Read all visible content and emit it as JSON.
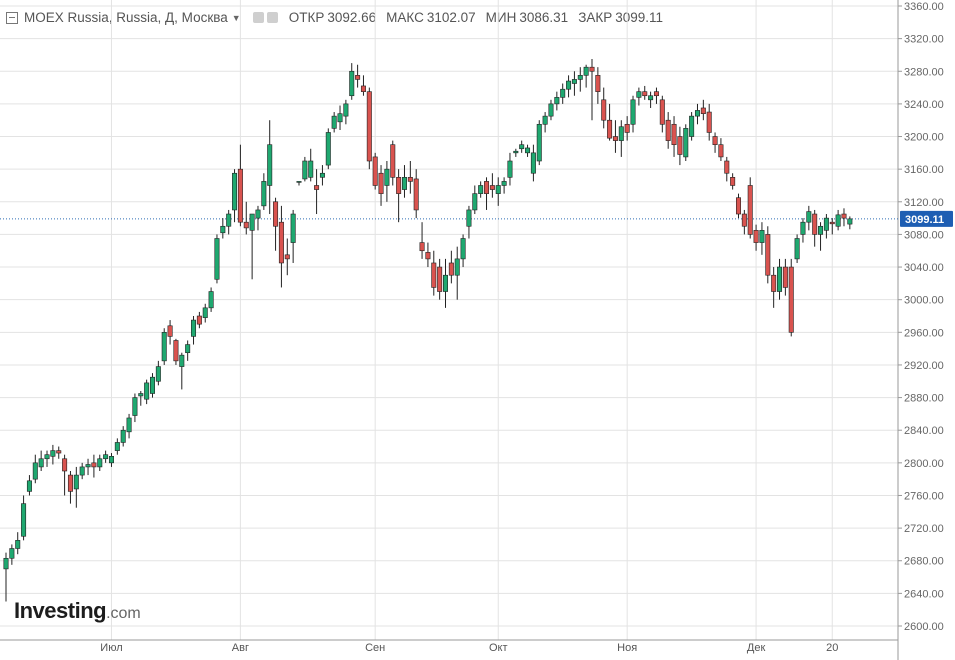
{
  "header": {
    "symbol": "MOEX Russia, Russia, Д, Москва",
    "open_label": "ОТКР",
    "open": "3092.66",
    "high_label": "МАКС",
    "high": "3102.07",
    "low_label": "МИН",
    "low": "3086.31",
    "close_label": "ЗАКР",
    "close": "3099.11"
  },
  "logo": {
    "brand": "Investing",
    "suffix": ".com"
  },
  "colors": {
    "up": "#1fa870",
    "down": "#d9534f",
    "price_badge": "#1e5eb3",
    "grid": "#e3e3e3"
  },
  "chart_data": {
    "type": "candlestick",
    "ylim": [
      2580,
      3360
    ],
    "yticks": [
      2600,
      2640,
      2680,
      2720,
      2760,
      2800,
      2840,
      2880,
      2920,
      2960,
      3000,
      3040,
      3080,
      3120,
      3160,
      3200,
      3240,
      3280,
      3320,
      3360
    ],
    "ytick_labels": [
      "2600.00",
      "2640.00",
      "2680.00",
      "2720.00",
      "2760.00",
      "2800.00",
      "2840.00",
      "2880.00",
      "2920.00",
      "2960.00",
      "3000.00",
      "3040.00",
      "3080.00",
      "3120.00",
      "3160.00",
      "3200.00",
      "3240.00",
      "3280.00",
      "3320.00",
      "3360.00"
    ],
    "x_ticks": [
      {
        "label": "Июл",
        "index": 18
      },
      {
        "label": "Авг",
        "index": 40
      },
      {
        "label": "Сен",
        "index": 63
      },
      {
        "label": "Окт",
        "index": 84
      },
      {
        "label": "Ноя",
        "index": 106
      },
      {
        "label": "Дек",
        "index": 128
      },
      {
        "label": "20",
        "index": 141
      }
    ],
    "last_price": 3099.11,
    "candles": [
      [
        2670,
        2690,
        2630,
        2683
      ],
      [
        2683,
        2700,
        2675,
        2695
      ],
      [
        2695,
        2715,
        2688,
        2705
      ],
      [
        2710,
        2760,
        2705,
        2750
      ],
      [
        2765,
        2785,
        2760,
        2778
      ],
      [
        2780,
        2810,
        2775,
        2800
      ],
      [
        2795,
        2815,
        2790,
        2805
      ],
      [
        2805,
        2815,
        2795,
        2810
      ],
      [
        2808,
        2822,
        2798,
        2815
      ],
      [
        2815,
        2820,
        2805,
        2812
      ],
      [
        2805,
        2810,
        2760,
        2790
      ],
      [
        2785,
        2790,
        2750,
        2765
      ],
      [
        2768,
        2795,
        2745,
        2785
      ],
      [
        2785,
        2800,
        2780,
        2795
      ],
      [
        2795,
        2805,
        2785,
        2798
      ],
      [
        2800,
        2810,
        2782,
        2795
      ],
      [
        2795,
        2810,
        2790,
        2805
      ],
      [
        2805,
        2815,
        2800,
        2810
      ],
      [
        2800,
        2812,
        2795,
        2808
      ],
      [
        2815,
        2830,
        2810,
        2825
      ],
      [
        2825,
        2845,
        2820,
        2840
      ],
      [
        2838,
        2860,
        2830,
        2855
      ],
      [
        2858,
        2885,
        2850,
        2880
      ],
      [
        2882,
        2888,
        2870,
        2885
      ],
      [
        2878,
        2902,
        2872,
        2898
      ],
      [
        2885,
        2910,
        2880,
        2905
      ],
      [
        2900,
        2925,
        2895,
        2918
      ],
      [
        2925,
        2965,
        2920,
        2960
      ],
      [
        2968,
        2975,
        2945,
        2955
      ],
      [
        2950,
        2952,
        2920,
        2925
      ],
      [
        2918,
        2935,
        2890,
        2932
      ],
      [
        2935,
        2950,
        2925,
        2945
      ],
      [
        2955,
        2980,
        2945,
        2975
      ],
      [
        2980,
        2985,
        2965,
        2970
      ],
      [
        2978,
        2995,
        2972,
        2990
      ],
      [
        2990,
        3015,
        2985,
        3010
      ],
      [
        3025,
        3080,
        3020,
        3075
      ],
      [
        3082,
        3100,
        3075,
        3090
      ],
      [
        3090,
        3110,
        3080,
        3105
      ],
      [
        3110,
        3160,
        3095,
        3155
      ],
      [
        3160,
        3190,
        3090,
        3095
      ],
      [
        3095,
        3120,
        3080,
        3088
      ],
      [
        3085,
        3105,
        3025,
        3105
      ],
      [
        3100,
        3115,
        3085,
        3110
      ],
      [
        3115,
        3155,
        3110,
        3145
      ],
      [
        3140,
        3220,
        3105,
        3190
      ],
      [
        3120,
        3125,
        3060,
        3090
      ],
      [
        3095,
        3115,
        3015,
        3045
      ],
      [
        3055,
        3075,
        3030,
        3050
      ],
      [
        3070,
        3110,
        3045,
        3105
      ],
      [
        3145,
        3145,
        3140,
        3145
      ],
      [
        3148,
        3175,
        3145,
        3170
      ],
      [
        3150,
        3185,
        3145,
        3170
      ],
      [
        3140,
        3160,
        3105,
        3135
      ],
      [
        3150,
        3165,
        3140,
        3155
      ],
      [
        3165,
        3210,
        3160,
        3205
      ],
      [
        3210,
        3230,
        3205,
        3225
      ],
      [
        3218,
        3238,
        3208,
        3228
      ],
      [
        3225,
        3245,
        3215,
        3240
      ],
      [
        3250,
        3290,
        3245,
        3280
      ],
      [
        3275,
        3288,
        3260,
        3270
      ],
      [
        3262,
        3275,
        3250,
        3255
      ],
      [
        3255,
        3260,
        3160,
        3170
      ],
      [
        3175,
        3180,
        3135,
        3140
      ],
      [
        3155,
        3165,
        3115,
        3130
      ],
      [
        3140,
        3170,
        3120,
        3160
      ],
      [
        3190,
        3195,
        3140,
        3150
      ],
      [
        3150,
        3160,
        3095,
        3130
      ],
      [
        3135,
        3165,
        3125,
        3150
      ],
      [
        3150,
        3170,
        3130,
        3145
      ],
      [
        3148,
        3160,
        3100,
        3110
      ],
      [
        3070,
        3095,
        3050,
        3060
      ],
      [
        3058,
        3070,
        3040,
        3050
      ],
      [
        3045,
        3060,
        3005,
        3015
      ],
      [
        3040,
        3050,
        3000,
        3010
      ],
      [
        3010,
        3050,
        2990,
        3030
      ],
      [
        3045,
        3060,
        3020,
        3030
      ],
      [
        3030,
        3065,
        3000,
        3050
      ],
      [
        3050,
        3080,
        3040,
        3075
      ],
      [
        3090,
        3115,
        3075,
        3110
      ],
      [
        3110,
        3140,
        3105,
        3130
      ],
      [
        3130,
        3145,
        3125,
        3140
      ],
      [
        3145,
        3150,
        3110,
        3130
      ],
      [
        3140,
        3155,
        3125,
        3135
      ],
      [
        3130,
        3150,
        3115,
        3140
      ],
      [
        3140,
        3150,
        3130,
        3145
      ],
      [
        3150,
        3180,
        3140,
        3170
      ],
      [
        3180,
        3185,
        3175,
        3182
      ],
      [
        3185,
        3195,
        3180,
        3190
      ],
      [
        3180,
        3190,
        3175,
        3186
      ],
      [
        3155,
        3190,
        3145,
        3180
      ],
      [
        3170,
        3220,
        3165,
        3215
      ],
      [
        3215,
        3230,
        3205,
        3225
      ],
      [
        3225,
        3245,
        3220,
        3240
      ],
      [
        3240,
        3255,
        3232,
        3248
      ],
      [
        3248,
        3265,
        3240,
        3258
      ],
      [
        3258,
        3275,
        3248,
        3268
      ],
      [
        3265,
        3280,
        3250,
        3270
      ],
      [
        3270,
        3285,
        3255,
        3275
      ],
      [
        3275,
        3288,
        3260,
        3285
      ],
      [
        3285,
        3295,
        3220,
        3280
      ],
      [
        3275,
        3285,
        3240,
        3255
      ],
      [
        3245,
        3260,
        3210,
        3220
      ],
      [
        3220,
        3240,
        3195,
        3198
      ],
      [
        3200,
        3220,
        3180,
        3195
      ],
      [
        3195,
        3220,
        3175,
        3212
      ],
      [
        3215,
        3225,
        3195,
        3205
      ],
      [
        3215,
        3250,
        3205,
        3245
      ],
      [
        3248,
        3260,
        3238,
        3255
      ],
      [
        3255,
        3262,
        3245,
        3250
      ],
      [
        3245,
        3255,
        3235,
        3250
      ],
      [
        3255,
        3260,
        3240,
        3250
      ],
      [
        3245,
        3250,
        3205,
        3215
      ],
      [
        3220,
        3230,
        3185,
        3195
      ],
      [
        3215,
        3225,
        3175,
        3190
      ],
      [
        3200,
        3212,
        3165,
        3178
      ],
      [
        3175,
        3215,
        3170,
        3210
      ],
      [
        3200,
        3230,
        3195,
        3225
      ],
      [
        3225,
        3240,
        3215,
        3232
      ],
      [
        3235,
        3245,
        3220,
        3228
      ],
      [
        3230,
        3240,
        3195,
        3205
      ],
      [
        3200,
        3205,
        3180,
        3190
      ],
      [
        3190,
        3198,
        3170,
        3175
      ],
      [
        3170,
        3175,
        3145,
        3155
      ],
      [
        3150,
        3155,
        3135,
        3140
      ],
      [
        3125,
        3130,
        3100,
        3105
      ],
      [
        3105,
        3110,
        3080,
        3090
      ],
      [
        3140,
        3150,
        3075,
        3080
      ],
      [
        3085,
        3092,
        3060,
        3070
      ],
      [
        3070,
        3095,
        3055,
        3085
      ],
      [
        3080,
        3090,
        3020,
        3030
      ],
      [
        3030,
        3040,
        2990,
        3010
      ],
      [
        3010,
        3050,
        3000,
        3040
      ],
      [
        3040,
        3050,
        3005,
        3015
      ],
      [
        3040,
        3050,
        2955,
        2960
      ],
      [
        3050,
        3080,
        3045,
        3075
      ],
      [
        3080,
        3100,
        3070,
        3095
      ],
      [
        3095,
        3115,
        3085,
        3108
      ],
      [
        3105,
        3110,
        3065,
        3080
      ],
      [
        3080,
        3095,
        3060,
        3090
      ],
      [
        3085,
        3105,
        3075,
        3100
      ],
      [
        3095,
        3100,
        3080,
        3093
      ],
      [
        3090,
        3110,
        3085,
        3104
      ],
      [
        3105,
        3112,
        3090,
        3100
      ],
      [
        3092.66,
        3102.07,
        3086.31,
        3099.11
      ]
    ]
  }
}
